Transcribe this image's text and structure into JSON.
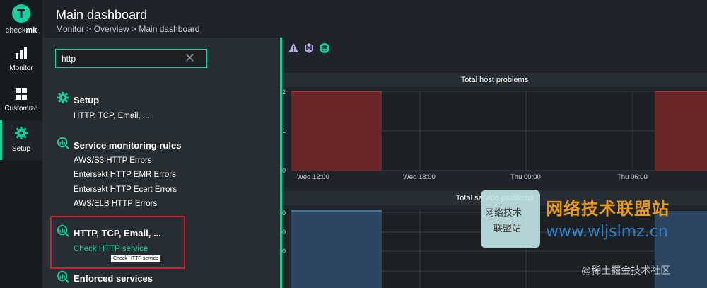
{
  "app": {
    "logo_text_pre": "check",
    "logo_text_bold": "mk",
    "brand_color": "#15d1a0"
  },
  "nav": {
    "items": [
      {
        "label": "Monitor",
        "icon": "bar-chart-icon"
      },
      {
        "label": "Customize",
        "icon": "grid-icon"
      },
      {
        "label": "Setup",
        "icon": "gear-icon"
      }
    ]
  },
  "header": {
    "title": "Main dashboard",
    "breadcrumb": "Monitor > Overview > Main dashboard"
  },
  "search": {
    "value": "http",
    "clear_icon": "close-icon"
  },
  "results": {
    "setup": {
      "title": "Setup",
      "items": [
        "HTTP, TCP, Email, ..."
      ]
    },
    "service_rules": {
      "title": "Service monitoring rules",
      "items": [
        "AWS/S3 HTTP Errors",
        "Entersekt HTTP EMR Errors",
        "Entersekt HTTP Ecert Errors",
        "AWS/ELB HTTP Errors"
      ]
    },
    "http_tcp": {
      "title": "HTTP, TCP, Email, ...",
      "items": [
        "Check HTTP service"
      ]
    },
    "enforced": {
      "title": "Enforced services"
    }
  },
  "tooltip": "Check HTTP service",
  "dashboard": {
    "icons": [
      "warning-icon",
      "hexagon-icon",
      "signal-icon"
    ],
    "host_chart": {
      "title": "Total host problems",
      "y_ticks": [
        "2",
        "1",
        "0"
      ],
      "x_ticks": [
        "Wed 12:00",
        "Wed 18:00",
        "Thu 00:00",
        "Thu 06:00"
      ],
      "fill_color": "#6b2428"
    },
    "service_chart": {
      "title": "Total service problems",
      "y_ticks": [
        "0",
        "0",
        "0"
      ],
      "fill_color": "#2b4560"
    }
  },
  "chart_data": [
    {
      "type": "area",
      "title": "Total host problems",
      "categories": [
        "Wed 12:00",
        "Wed 18:00",
        "Thu 00:00",
        "Thu 06:00"
      ],
      "ylim": [
        0,
        2
      ],
      "series": [
        {
          "values": [
            2,
            0,
            0,
            2
          ]
        }
      ]
    }
  ],
  "watermark": {
    "box_line1": "网络技术",
    "box_line2": "联盟站",
    "cn": "网络技术联盟站",
    "url": "www.wljslmz.cn",
    "bottom": "@稀土掘金技术社区"
  }
}
